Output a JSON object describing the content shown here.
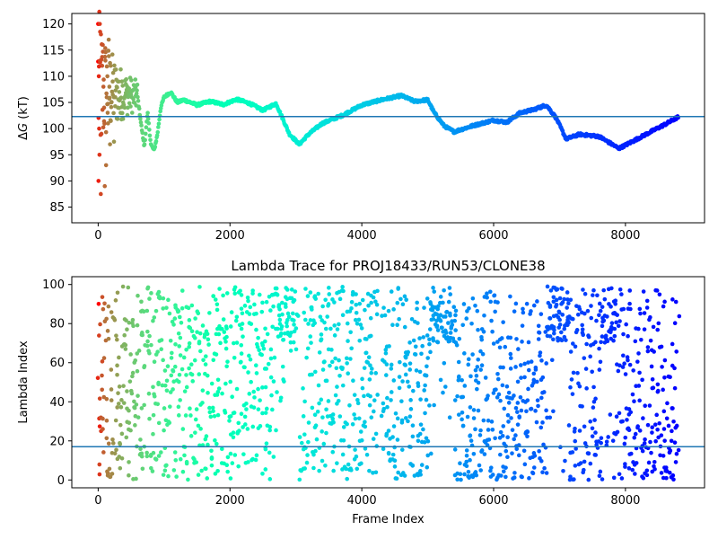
{
  "figure": {
    "background": "#ffffff"
  },
  "chart_data": [
    {
      "type": "scatter",
      "title": "",
      "xlabel": "",
      "ylabel": "ΔG (kT)",
      "ylabel_main": "Δ",
      "ylabel_italic": "G",
      "ylabel_rest": " (kT)",
      "xlim": [
        -400,
        9200
      ],
      "ylim": [
        82,
        122
      ],
      "xticks": [
        0,
        2000,
        4000,
        6000,
        8000
      ],
      "xtick_labels": [
        "0",
        "2000",
        "4000",
        "6000",
        "8000"
      ],
      "yticks": [
        85,
        90,
        95,
        100,
        105,
        110,
        115,
        120
      ],
      "ytick_labels": [
        "85",
        "90",
        "95",
        "100",
        "105",
        "110",
        "115",
        "120"
      ],
      "hline": 102.3,
      "hline_color": "#1f77b4",
      "colormap": "rainbow",
      "color_encoding": "frame index (reversed rainbow: red at frame 0, violet at later frames)",
      "x_max": 8800,
      "path_anchors": {
        "x": [
          600,
          650,
          700,
          750,
          800,
          850,
          900,
          950,
          1000,
          1100,
          1200,
          1300,
          1500,
          1700,
          1900,
          2100,
          2300,
          2500,
          2700,
          2900,
          3050,
          3200,
          3400,
          3700,
          4000,
          4300,
          4600,
          4800,
          5000,
          5100,
          5250,
          5400,
          5700,
          6000,
          6200,
          6400,
          6600,
          6800,
          6950,
          7100,
          7300,
          7600,
          7900,
          8100,
          8400,
          8600,
          8800
        ],
        "y": [
          106,
          101,
          96.5,
          103,
          97,
          95.8,
          99,
          104,
          106,
          107,
          105,
          105.5,
          104.5,
          105.2,
          104.6,
          105.6,
          104.8,
          103.5,
          104.8,
          99,
          97,
          99,
          101,
          102.5,
          104.5,
          105.5,
          106.3,
          105.2,
          105.5,
          103,
          100.5,
          99.4,
          100.6,
          101.6,
          101.2,
          103,
          103.6,
          104.5,
          102,
          98,
          98.9,
          98.5,
          96.2,
          97.5,
          99.5,
          100.8,
          102.2
        ]
      },
      "early_scatter_samples": {
        "x": [
          0,
          5,
          10,
          15,
          20,
          25,
          30,
          40,
          50,
          60,
          70,
          80,
          90,
          100,
          110,
          120,
          130,
          140,
          150,
          160,
          170,
          180,
          190,
          200,
          220,
          240,
          260,
          280,
          300,
          320,
          340,
          360,
          380,
          400,
          420,
          450,
          480,
          510,
          540,
          570
        ],
        "y": [
          120,
          90,
          110,
          100,
          95,
          120,
          118.5,
          87.5,
          99,
          112,
          116,
          108,
          104,
          89,
          113,
          93,
          106,
          110,
          101,
          117,
          108,
          97,
          112,
          105,
          109,
          97.5,
          106,
          108,
          104,
          107,
          103,
          109,
          105,
          106,
          108.5,
          104,
          107,
          106,
          105,
          108
        ]
      }
    },
    {
      "type": "scatter",
      "title": "Lambda Trace for PROJ18433/RUN53/CLONE38",
      "xlabel": "Frame Index",
      "ylabel": "Lambda Index",
      "xlim": [
        -400,
        9200
      ],
      "ylim": [
        -4,
        104
      ],
      "xticks": [
        0,
        2000,
        4000,
        6000,
        8000
      ],
      "xtick_labels": [
        "0",
        "2000",
        "4000",
        "6000",
        "8000"
      ],
      "yticks": [
        0,
        20,
        40,
        60,
        80,
        100
      ],
      "ytick_labels": [
        "0",
        "20",
        "40",
        "60",
        "80",
        "100"
      ],
      "hline": 17,
      "hline_color": "#1f77b4",
      "colormap": "rainbow",
      "color_encoding": "frame index (reversed rainbow: red at frame 0, violet at later frames)",
      "x_max": 8800,
      "x_step": 5,
      "y_range": [
        0,
        99
      ],
      "dense_top_bands": [
        [
          2700,
          3000
        ],
        [
          5050,
          5400
        ],
        [
          6800,
          7150
        ],
        [
          7650,
          7850
        ]
      ],
      "top_band_y_range": [
        70,
        99
      ],
      "sparse_gaps": [
        [
          3000,
          3100
        ],
        [
          4250,
          4300
        ]
      ]
    }
  ]
}
